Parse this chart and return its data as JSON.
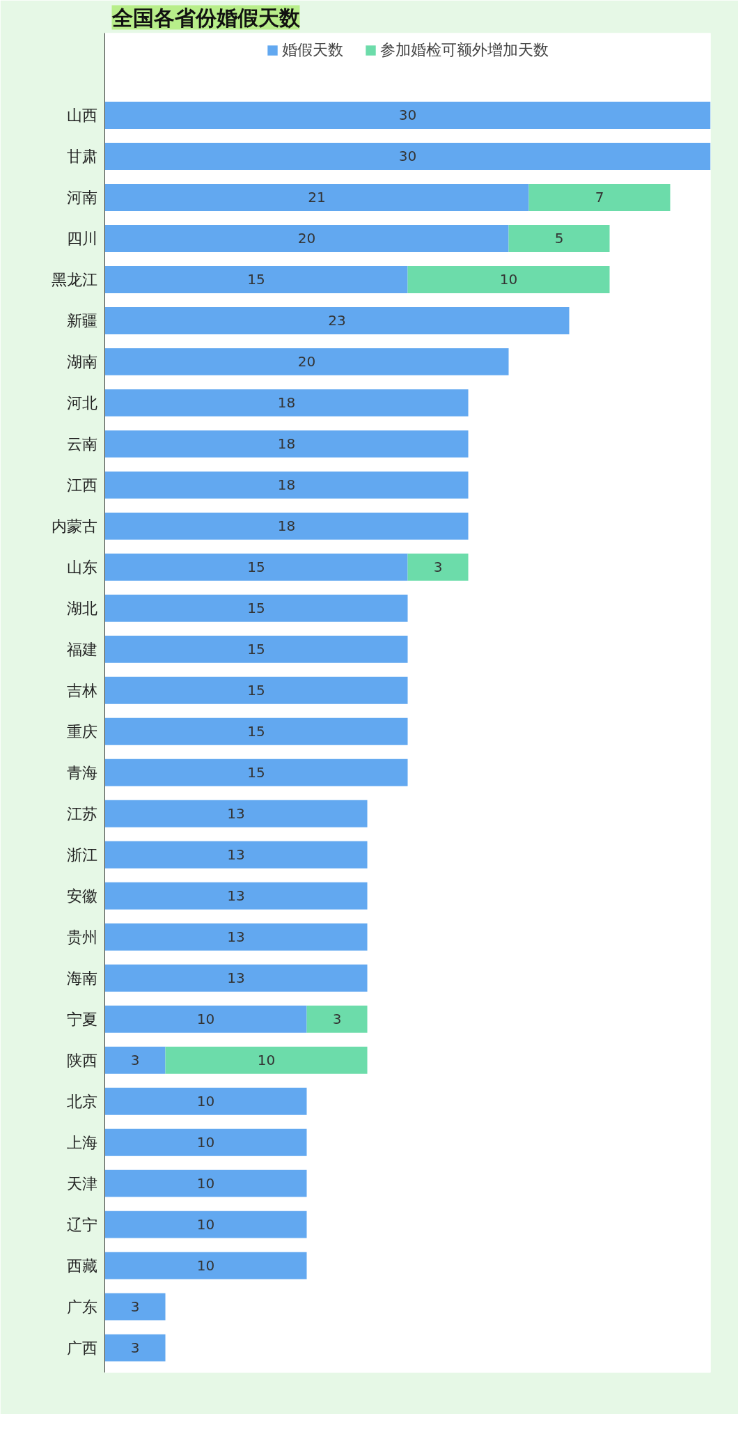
{
  "chart_data": {
    "type": "bar",
    "orientation": "horizontal",
    "stacked": true,
    "title": "全国各省份婚假天数",
    "categories": [
      "山西",
      "甘肃",
      "河南",
      "四川",
      "黑龙江",
      "新疆",
      "湖南",
      "河北",
      "云南",
      "江西",
      "内蒙古",
      "山东",
      "湖北",
      "福建",
      "吉林",
      "重庆",
      "青海",
      "江苏",
      "浙江",
      "安徽",
      "贵州",
      "海南",
      "宁夏",
      "陕西",
      "北京",
      "上海",
      "天津",
      "辽宁",
      "西藏",
      "广东",
      "广西"
    ],
    "series": [
      {
        "name": "婚假天数",
        "color": "#62a8f0",
        "values": [
          30,
          30,
          21,
          20,
          15,
          23,
          20,
          18,
          18,
          18,
          18,
          15,
          15,
          15,
          15,
          15,
          15,
          13,
          13,
          13,
          13,
          13,
          10,
          3,
          10,
          10,
          10,
          10,
          10,
          3,
          3
        ]
      },
      {
        "name": "参加婚检可额外增加天数",
        "color": "#6cdcaa",
        "values": [
          null,
          null,
          7,
          5,
          10,
          null,
          null,
          null,
          null,
          null,
          null,
          3,
          null,
          null,
          null,
          null,
          null,
          null,
          null,
          null,
          null,
          null,
          3,
          10,
          null,
          null,
          null,
          null,
          null,
          null,
          null
        ]
      }
    ],
    "data_labels": true,
    "legend": "top",
    "grid": false,
    "tick_labels": "y"
  }
}
